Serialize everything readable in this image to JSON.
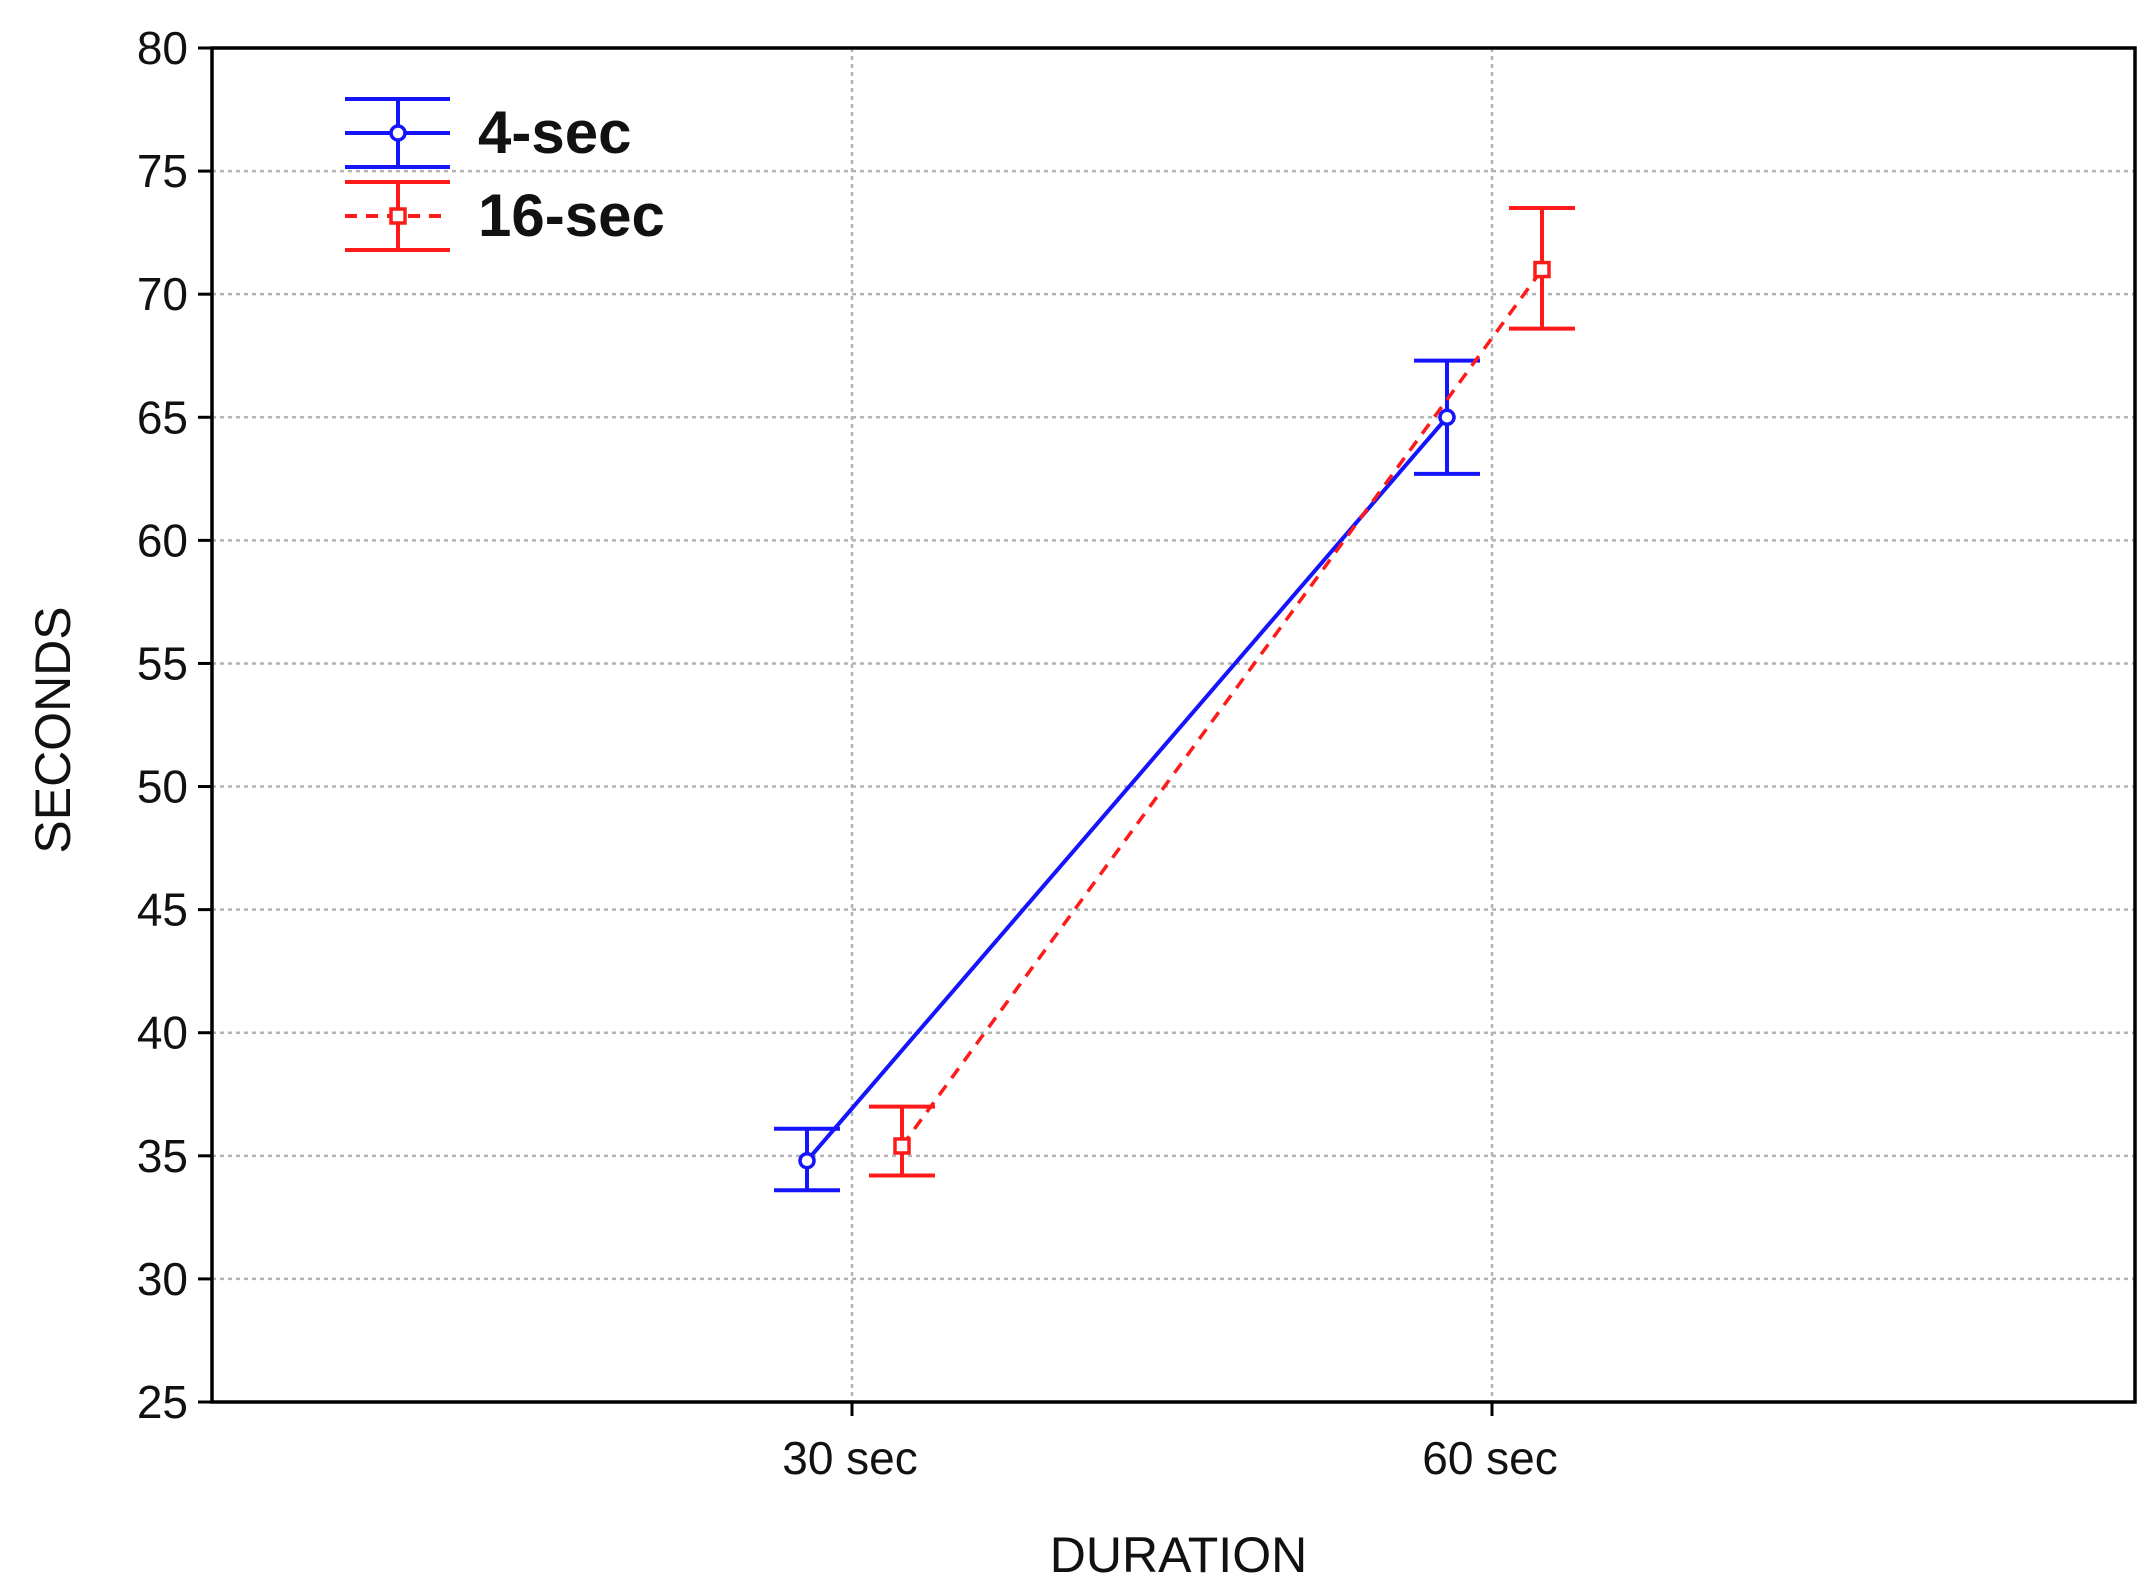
{
  "chart_data": {
    "type": "line",
    "title": "",
    "xlabel": "DURATION",
    "ylabel": "SECONDS",
    "categories": [
      "30 sec",
      "60 sec"
    ],
    "ylim": [
      25,
      80
    ],
    "yticks": [
      25,
      30,
      35,
      40,
      45,
      50,
      55,
      60,
      65,
      70,
      75,
      80
    ],
    "grid": true,
    "legend_position": "top-left",
    "series": [
      {
        "name": "4-sec",
        "color": "#1414ff",
        "line_style": "solid",
        "marker": "circle",
        "values": [
          34.8,
          65.0
        ],
        "error_low": [
          33.6,
          62.7
        ],
        "error_high": [
          36.1,
          67.3
        ]
      },
      {
        "name": "16-sec",
        "color": "#ff1a1a",
        "line_style": "dashed",
        "marker": "square",
        "values": [
          35.4,
          71.0
        ],
        "error_low": [
          34.2,
          68.6
        ],
        "error_high": [
          37.0,
          73.5
        ]
      }
    ]
  }
}
